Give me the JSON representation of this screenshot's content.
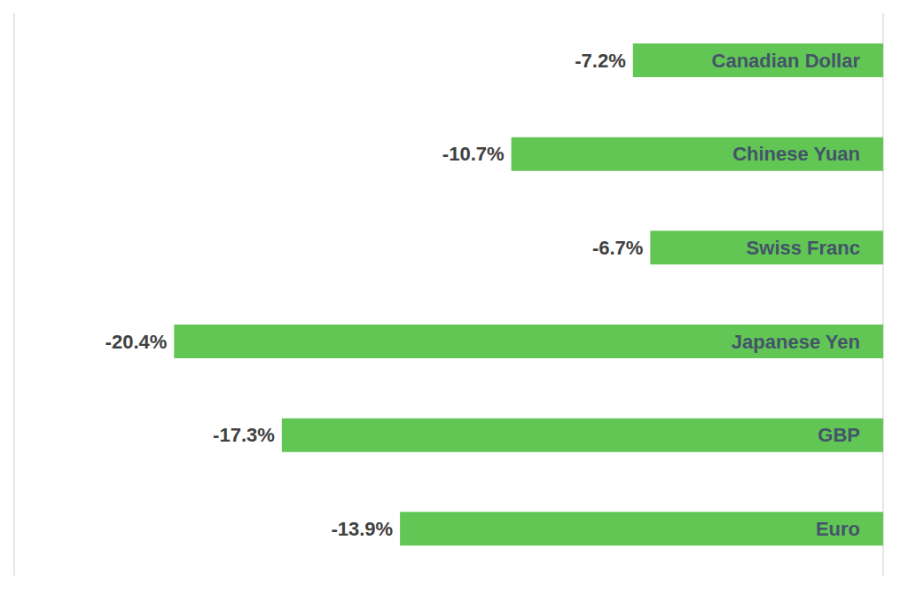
{
  "chart_data": {
    "type": "bar",
    "orientation": "horizontal",
    "categories": [
      "Canadian Dollar",
      "Chinese Yuan",
      "Swiss Franc",
      "Japanese Yen",
      "GBP",
      "Euro"
    ],
    "values": [
      -7.2,
      -10.7,
      -6.7,
      -20.4,
      -17.3,
      -13.9
    ],
    "value_labels": [
      "-7.2%",
      "-10.7%",
      "-6.7%",
      "-20.4%",
      "-17.3%",
      "-13.9%"
    ],
    "color": "#61c654",
    "xlim": [
      -25,
      0
    ],
    "xticks": [
      -25,
      -20,
      -15,
      -10,
      -5,
      0
    ],
    "grid": true,
    "data_labels": true,
    "tick_labels": false
  }
}
